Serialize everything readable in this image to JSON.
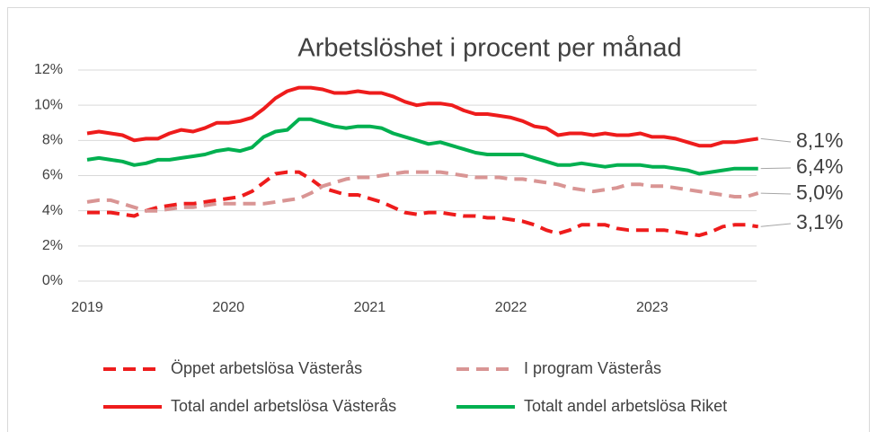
{
  "chart_data": {
    "type": "line",
    "title": "Arbetslöshet i procent per månad",
    "categories": [
      "2019",
      null,
      null,
      null,
      null,
      null,
      null,
      null,
      null,
      null,
      null,
      null,
      "2020",
      null,
      null,
      null,
      null,
      null,
      null,
      null,
      null,
      null,
      null,
      null,
      "2021",
      null,
      null,
      null,
      null,
      null,
      null,
      null,
      null,
      null,
      null,
      null,
      "2022",
      null,
      null,
      null,
      null,
      null,
      null,
      null,
      null,
      null,
      null,
      null,
      "2023",
      null,
      null,
      null,
      null,
      null,
      null,
      null,
      null,
      null
    ],
    "ylim": [
      0,
      12
    ],
    "yticks": [
      {
        "value": 0,
        "label": "0%"
      },
      {
        "value": 2,
        "label": "2%"
      },
      {
        "value": 4,
        "label": "4%"
      },
      {
        "value": 6,
        "label": "6%"
      },
      {
        "value": 8,
        "label": "8%"
      },
      {
        "value": 10,
        "label": "10%"
      },
      {
        "value": 12,
        "label": "12%"
      }
    ],
    "grid": true,
    "legend": "bottom",
    "series": [
      {
        "name": "Öppet arbetslösa Västerås",
        "color": "#ee1c1c",
        "dashed": true,
        "values": [
          3.9,
          3.9,
          3.9,
          3.8,
          3.7,
          4.0,
          4.2,
          4.3,
          4.4,
          4.4,
          4.5,
          4.6,
          4.7,
          4.8,
          5.1,
          5.6,
          6.1,
          6.2,
          6.2,
          5.8,
          5.3,
          5.1,
          4.9,
          4.9,
          4.7,
          4.5,
          4.2,
          3.9,
          3.8,
          3.9,
          3.9,
          3.8,
          3.7,
          3.7,
          3.6,
          3.6,
          3.5,
          3.4,
          3.2,
          2.9,
          2.7,
          2.9,
          3.2,
          3.2,
          3.2,
          3.0,
          2.9,
          2.9,
          2.9,
          2.9,
          2.8,
          2.7,
          2.6,
          2.8,
          3.1,
          3.2,
          3.2,
          3.1
        ],
        "value_labels": [
          null,
          null,
          null,
          null,
          null,
          null,
          null,
          null,
          null,
          null,
          null,
          null,
          null,
          null,
          null,
          null,
          null,
          null,
          null,
          null,
          null,
          null,
          null,
          null,
          null,
          null,
          null,
          null,
          null,
          null,
          null,
          null,
          null,
          null,
          null,
          null,
          null,
          null,
          null,
          null,
          null,
          null,
          null,
          null,
          null,
          null,
          null,
          null,
          null,
          null,
          null,
          null,
          null,
          null,
          null,
          null,
          null,
          "3,1%"
        ]
      },
      {
        "name": "I program Västerås",
        "color": "#d99594",
        "dashed": true,
        "values": [
          4.5,
          4.6,
          4.6,
          4.4,
          4.2,
          4.0,
          4.0,
          4.1,
          4.2,
          4.2,
          4.3,
          4.4,
          4.4,
          4.4,
          4.4,
          4.4,
          4.5,
          4.6,
          4.7,
          5.0,
          5.4,
          5.6,
          5.8,
          5.9,
          5.9,
          6.0,
          6.1,
          6.2,
          6.2,
          6.2,
          6.2,
          6.1,
          6.0,
          5.9,
          5.9,
          5.9,
          5.8,
          5.8,
          5.7,
          5.6,
          5.5,
          5.3,
          5.2,
          5.1,
          5.2,
          5.3,
          5.5,
          5.5,
          5.4,
          5.4,
          5.3,
          5.2,
          5.1,
          5.0,
          4.9,
          4.8,
          4.8,
          5.0
        ],
        "value_labels": [
          null,
          null,
          null,
          null,
          null,
          null,
          null,
          null,
          null,
          null,
          null,
          null,
          null,
          null,
          null,
          null,
          null,
          null,
          null,
          null,
          null,
          null,
          null,
          null,
          null,
          null,
          null,
          null,
          null,
          null,
          null,
          null,
          null,
          null,
          null,
          null,
          null,
          null,
          null,
          null,
          null,
          null,
          null,
          null,
          null,
          null,
          null,
          null,
          null,
          null,
          null,
          null,
          null,
          null,
          null,
          null,
          null,
          "5,0%"
        ]
      },
      {
        "name": "Total andel arbetslösa Västerås",
        "color": "#ee1c1c",
        "dashed": false,
        "values": [
          8.4,
          8.5,
          8.4,
          8.3,
          8.0,
          8.1,
          8.1,
          8.4,
          8.6,
          8.5,
          8.7,
          9.0,
          9.0,
          9.1,
          9.3,
          9.8,
          10.4,
          10.8,
          11.0,
          11.0,
          10.9,
          10.7,
          10.7,
          10.8,
          10.7,
          10.7,
          10.5,
          10.2,
          10.0,
          10.1,
          10.1,
          10.0,
          9.7,
          9.5,
          9.5,
          9.4,
          9.3,
          9.1,
          8.8,
          8.7,
          8.3,
          8.4,
          8.4,
          8.3,
          8.4,
          8.3,
          8.3,
          8.4,
          8.2,
          8.2,
          8.1,
          7.9,
          7.7,
          7.7,
          7.9,
          7.9,
          8.0,
          8.1
        ],
        "value_labels": [
          null,
          null,
          null,
          null,
          null,
          null,
          null,
          null,
          null,
          null,
          null,
          null,
          null,
          null,
          null,
          null,
          null,
          null,
          null,
          null,
          null,
          null,
          null,
          null,
          null,
          null,
          null,
          null,
          null,
          null,
          null,
          null,
          null,
          null,
          null,
          null,
          null,
          null,
          null,
          null,
          null,
          null,
          null,
          null,
          null,
          null,
          null,
          null,
          null,
          null,
          null,
          null,
          null,
          null,
          null,
          null,
          null,
          "8,1%"
        ]
      },
      {
        "name": "Totalt andel arbetslösa Riket",
        "color": "#00b050",
        "dashed": false,
        "values": [
          6.9,
          7.0,
          6.9,
          6.8,
          6.6,
          6.7,
          6.9,
          6.9,
          7.0,
          7.1,
          7.2,
          7.4,
          7.5,
          7.4,
          7.6,
          8.2,
          8.5,
          8.6,
          9.2,
          9.2,
          9.0,
          8.8,
          8.7,
          8.8,
          8.8,
          8.7,
          8.4,
          8.2,
          8.0,
          7.8,
          7.9,
          7.7,
          7.5,
          7.3,
          7.2,
          7.2,
          7.2,
          7.2,
          7.0,
          6.8,
          6.6,
          6.6,
          6.7,
          6.6,
          6.5,
          6.6,
          6.6,
          6.6,
          6.5,
          6.5,
          6.4,
          6.3,
          6.1,
          6.2,
          6.3,
          6.4,
          6.4,
          6.4
        ],
        "value_labels": [
          null,
          null,
          null,
          null,
          null,
          null,
          null,
          null,
          null,
          null,
          null,
          null,
          null,
          null,
          null,
          null,
          null,
          null,
          null,
          null,
          null,
          null,
          null,
          null,
          null,
          null,
          null,
          null,
          null,
          null,
          null,
          null,
          null,
          null,
          null,
          null,
          null,
          null,
          null,
          null,
          null,
          null,
          null,
          null,
          null,
          null,
          null,
          null,
          null,
          null,
          null,
          null,
          null,
          null,
          null,
          null,
          null,
          "6,4%"
        ]
      }
    ]
  }
}
